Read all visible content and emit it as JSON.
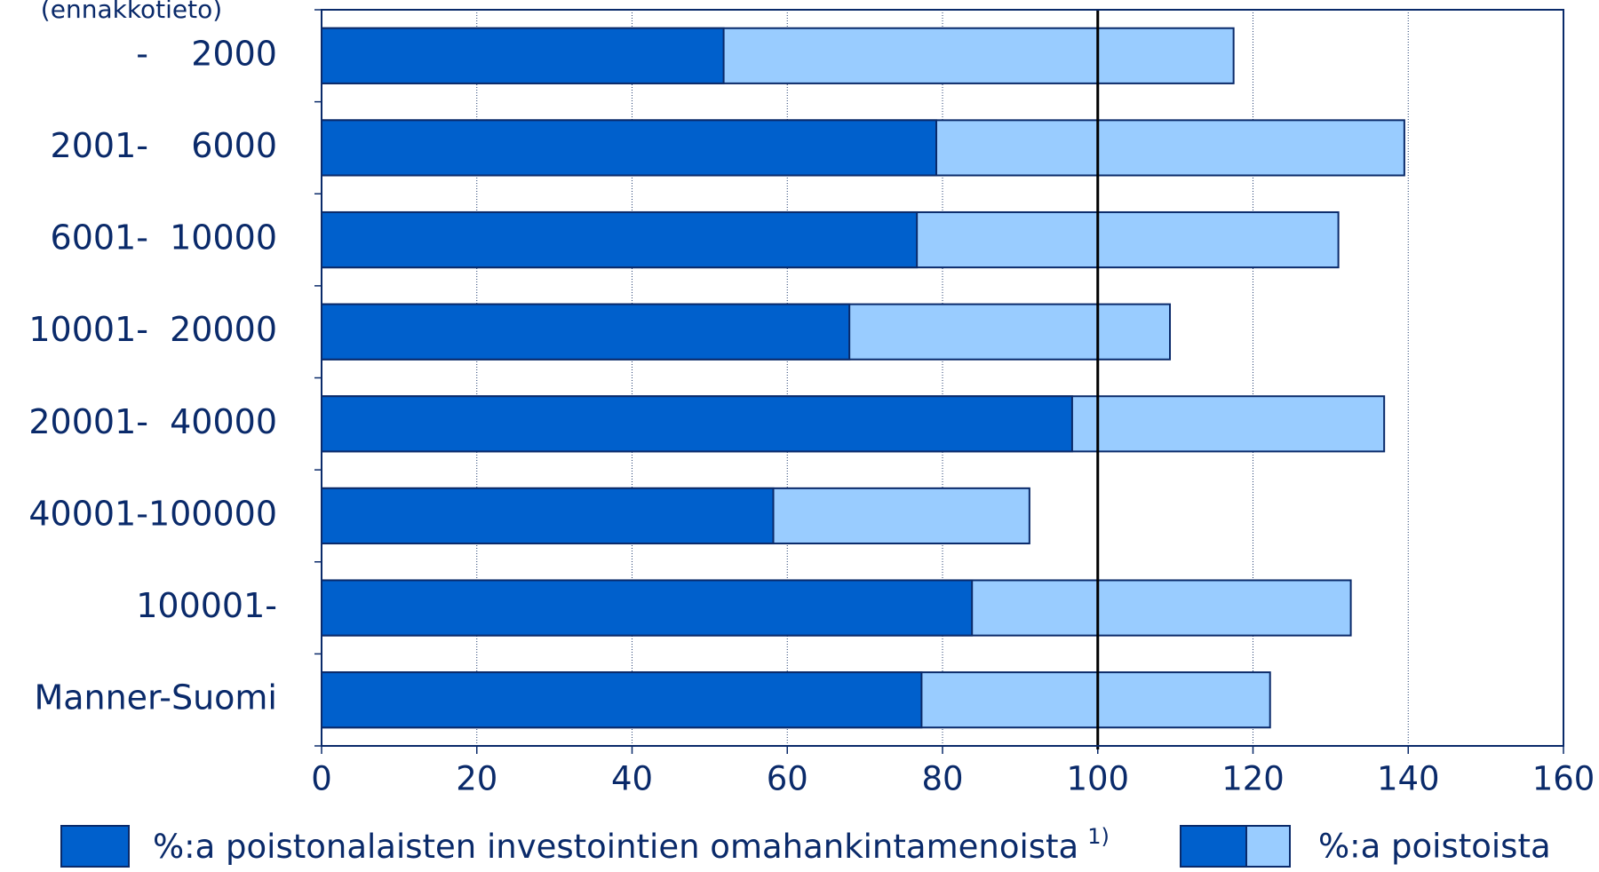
{
  "chart_data": {
    "type": "bar",
    "orientation": "horizontal",
    "overlap": true,
    "subtitle": "(ennakkotieto)",
    "categories": [
      "-    2000",
      "2001-    6000",
      "6001-  10000",
      "10001-  20000",
      "20001-  40000",
      "40001-100000",
      "100001-",
      "Manner-Suomi"
    ],
    "series": [
      {
        "name": "%:a poistoista",
        "color": "#99ccff",
        "values": [
          117.5,
          139.5,
          131,
          109.3,
          136.9,
          91.2,
          132.6,
          122.2
        ]
      },
      {
        "name": "%:a poistonalaisten investointien omahankintamenoista",
        "note": "1)",
        "color": "#0060cc",
        "values": [
          51.8,
          79.2,
          76.7,
          68,
          96.7,
          58.2,
          83.8,
          77.3
        ]
      }
    ],
    "xlim": [
      0,
      160
    ],
    "xticks": [
      0,
      20,
      40,
      60,
      80,
      100,
      120,
      140,
      160
    ],
    "reference_line": 100,
    "grid": true
  }
}
